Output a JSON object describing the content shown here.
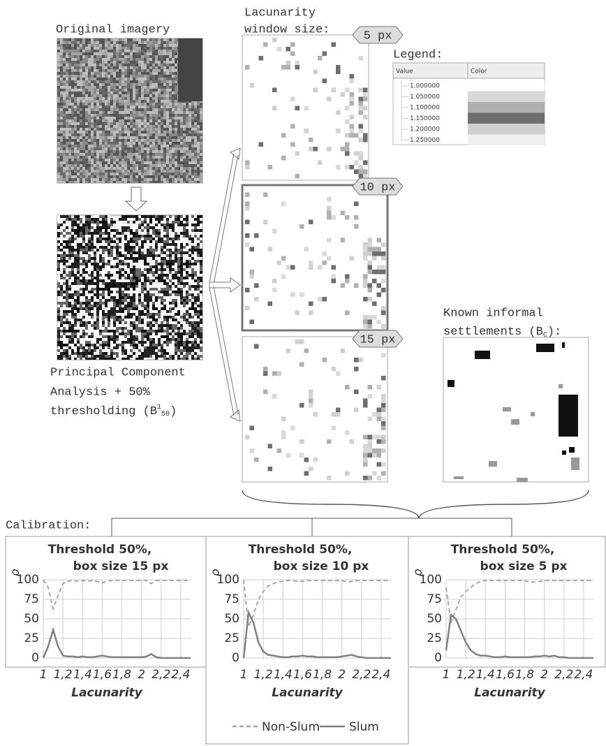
{
  "figure": {
    "original_label": "Original imagery",
    "pca_lines": [
      "Principal Component",
      "Analysis + 50%",
      "thresholding (B"
    ],
    "pca_sup": "1",
    "pca_sub": "50",
    "pca_close": ")",
    "lac_lines": [
      "Lacunarity",
      "window size:"
    ],
    "badges": [
      "5 px",
      "10 px",
      "15 px"
    ],
    "known_lines": [
      "Known informal",
      "settlements (B"
    ],
    "known_sub": "C",
    "known_close": "):",
    "calibration": "Calibration:"
  },
  "legend_table": {
    "title": "Legend:",
    "headers": [
      "Value",
      "Color"
    ],
    "rows": [
      {
        "value": "1.000000",
        "color": "#ffffff"
      },
      {
        "value": "1.050000",
        "color": "#d9d9d9"
      },
      {
        "value": "1.100000",
        "color": "#b0b0b0"
      },
      {
        "value": "1.150000",
        "color": "#6e6e6e"
      },
      {
        "value": "1.200000",
        "color": "#d0d0d0"
      },
      {
        "value": "1.250000",
        "color": "#f0f0f0"
      }
    ]
  },
  "chart_data": [
    {
      "type": "line",
      "title": "Threshold 50%,",
      "subtitle": "box size 15 px",
      "x_label": "Lacunarity",
      "y_label": "ρ",
      "x": [
        1,
        1.05,
        1.1,
        1.15,
        1.2,
        1.25,
        1.3,
        1.35,
        1.4,
        1.45,
        1.5,
        1.55,
        1.6,
        1.65,
        1.7,
        1.75,
        1.8,
        1.85,
        1.9,
        1.95,
        2,
        2.05,
        2.1,
        2.15,
        2.2,
        2.25,
        2.3,
        2.35,
        2.4,
        2.45,
        2.5
      ],
      "xlim": [
        1,
        2.5
      ],
      "ylim": [
        0,
        100
      ],
      "xticks": [
        1,
        {
          "value": 1.2,
          "label": "1,2"
        },
        {
          "value": 1.4,
          "label": "1,4"
        },
        {
          "value": 1.6,
          "label": "1,6"
        },
        {
          "value": 1.8,
          "label": "1,8"
        },
        2,
        {
          "value": 2.2,
          "label": "2,2"
        },
        {
          "value": 2.4,
          "label": "2,4"
        }
      ],
      "yticks": [
        0,
        25,
        50,
        75,
        100
      ],
      "grid": true,
      "series": [
        {
          "name": "Non-Slum",
          "color": "#a8a8a8",
          "line_style": "dashed",
          "values": [
            100,
            90,
            63,
            80,
            95,
            98,
            99,
            98,
            99,
            98,
            99,
            98,
            96,
            98,
            99,
            99,
            99,
            99,
            99,
            99,
            99,
            99,
            95,
            99,
            99,
            99,
            99,
            99,
            99,
            99,
            99
          ]
        },
        {
          "name": "Slum",
          "color": "#808080",
          "line_style": "solid",
          "values": [
            0,
            15,
            36,
            15,
            3,
            2,
            2,
            1,
            2,
            1,
            1,
            2,
            3,
            2,
            1,
            1,
            1,
            1,
            1,
            1,
            1,
            2,
            5,
            1,
            0,
            0,
            0,
            0,
            0,
            0,
            0
          ]
        }
      ]
    },
    {
      "type": "line",
      "title": "Threshold 50%,",
      "subtitle": "box size 10 px",
      "x_label": "Lacunarity",
      "y_label": "ρ",
      "x": [
        1,
        1.05,
        1.1,
        1.15,
        1.2,
        1.25,
        1.3,
        1.35,
        1.4,
        1.45,
        1.5,
        1.55,
        1.6,
        1.65,
        1.7,
        1.75,
        1.8,
        1.85,
        1.9,
        1.95,
        2,
        2.05,
        2.1,
        2.15,
        2.2,
        2.25,
        2.3,
        2.35,
        2.4,
        2.45,
        2.5
      ],
      "xlim": [
        1,
        2.5
      ],
      "ylim": [
        0,
        100
      ],
      "xticks": [
        1,
        {
          "value": 1.2,
          "label": "1,2"
        },
        {
          "value": 1.4,
          "label": "1,4"
        },
        {
          "value": 1.6,
          "label": "1,6"
        },
        {
          "value": 1.8,
          "label": "1,8"
        },
        2,
        {
          "value": 2.2,
          "label": "2,2"
        },
        {
          "value": 2.4,
          "label": "2,4"
        }
      ],
      "yticks": [
        0,
        25,
        50,
        75,
        100
      ],
      "grid": true,
      "series": [
        {
          "name": "Non-Slum",
          "color": "#a8a8a8",
          "line_style": "dashed",
          "values": [
            100,
            40,
            55,
            75,
            85,
            92,
            95,
            97,
            98,
            99,
            99,
            98,
            98,
            99,
            99,
            99,
            99,
            99,
            99,
            99,
            99,
            97,
            98,
            99,
            99,
            99,
            99,
            99,
            99,
            99,
            99
          ]
        },
        {
          "name": "Slum",
          "color": "#808080",
          "line_style": "solid",
          "values": [
            0,
            58,
            45,
            20,
            8,
            4,
            3,
            2,
            1,
            1,
            2,
            2,
            3,
            2,
            2,
            1,
            1,
            1,
            1,
            1,
            2,
            3,
            4,
            2,
            1,
            0,
            0,
            0,
            0,
            0,
            0
          ]
        }
      ]
    },
    {
      "type": "line",
      "title": "Threshold 50%,",
      "subtitle": "box size 5 px",
      "x_label": "Lacunarity",
      "y_label": "ρ",
      "x": [
        1,
        1.05,
        1.1,
        1.15,
        1.2,
        1.25,
        1.3,
        1.35,
        1.4,
        1.45,
        1.5,
        1.55,
        1.6,
        1.65,
        1.7,
        1.75,
        1.8,
        1.85,
        1.9,
        1.95,
        2,
        2.05,
        2.1,
        2.15,
        2.2,
        2.25,
        2.3,
        2.35,
        2.4,
        2.45,
        2.5
      ],
      "xlim": [
        1,
        2.5
      ],
      "ylim": [
        0,
        100
      ],
      "xticks": [
        1,
        {
          "value": 1.2,
          "label": "1,2"
        },
        {
          "value": 1.4,
          "label": "1,4"
        },
        {
          "value": 1.6,
          "label": "1,6"
        },
        {
          "value": 1.8,
          "label": "1,8"
        },
        2,
        {
          "value": 2.2,
          "label": "2,2"
        },
        {
          "value": 2.4,
          "label": "2,4"
        }
      ],
      "yticks": [
        0,
        25,
        50,
        75,
        100
      ],
      "grid": true,
      "series": [
        {
          "name": "Non-Slum",
          "color": "#a8a8a8",
          "line_style": "dashed",
          "values": [
            90,
            45,
            62,
            78,
            85,
            90,
            95,
            98,
            99,
            99,
            99,
            99,
            99,
            99,
            99,
            99,
            99,
            97,
            97,
            98,
            99,
            99,
            99,
            99,
            99,
            99,
            99,
            99,
            99,
            99,
            99
          ]
        },
        {
          "name": "Slum",
          "color": "#808080",
          "line_style": "solid",
          "values": [
            10,
            55,
            50,
            35,
            20,
            10,
            5,
            3,
            3,
            2,
            1,
            1,
            2,
            1,
            1,
            1,
            1,
            1,
            2,
            2,
            3,
            2,
            3,
            1,
            1,
            0,
            0,
            0,
            0,
            0,
            0
          ]
        }
      ]
    }
  ]
}
